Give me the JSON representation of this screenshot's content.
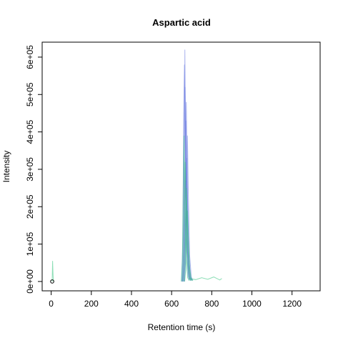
{
  "chart_data": {
    "type": "line",
    "title": "Aspartic acid",
    "xlabel": "Retention time (s)",
    "ylabel": "Intensity",
    "xlim": [
      -45,
      1340
    ],
    "ylim": [
      -25000,
      640000
    ],
    "x_ticks": [
      0,
      200,
      400,
      600,
      800,
      1000,
      1200
    ],
    "x_tick_labels": [
      "0",
      "200",
      "400",
      "600",
      "800",
      "1000",
      "1200"
    ],
    "y_ticks": [
      0,
      100000,
      200000,
      300000,
      400000,
      500000,
      600000
    ],
    "y_tick_labels": [
      "0e+00",
      "1e+05",
      "2e+05",
      "3e+05",
      "4e+05",
      "5e+05",
      "6e+05"
    ],
    "grid": false,
    "legend": "none",
    "colors": {
      "blue": "#6a7ae0",
      "green": "#2ec27a"
    },
    "point": {
      "x": 5,
      "y": 0
    },
    "series": [
      {
        "color": "blue",
        "x": [
          655,
          660,
          663,
          666,
          670,
          676,
          684,
          690
        ],
        "y": [
          0,
          100000,
          400000,
          620000,
          350000,
          120000,
          20000,
          5000
        ]
      },
      {
        "color": "blue",
        "x": [
          650,
          656,
          660,
          664,
          669,
          675,
          682,
          688
        ],
        "y": [
          0,
          120000,
          450000,
          580000,
          300000,
          90000,
          15000,
          3000
        ]
      },
      {
        "color": "blue",
        "x": [
          660,
          665,
          669,
          673,
          678,
          684,
          692,
          700
        ],
        "y": [
          0,
          80000,
          300000,
          480000,
          260000,
          80000,
          15000,
          4000
        ]
      },
      {
        "color": "blue",
        "x": [
          652,
          658,
          662,
          667,
          672,
          678,
          686,
          694
        ],
        "y": [
          0,
          90000,
          330000,
          520000,
          280000,
          85000,
          14000,
          3000
        ]
      },
      {
        "color": "blue",
        "x": [
          665,
          670,
          674,
          679,
          684,
          690,
          698,
          706
        ],
        "y": [
          0,
          60000,
          220000,
          390000,
          210000,
          70000,
          12000,
          3000
        ]
      },
      {
        "color": "blue",
        "x": [
          658,
          663,
          667,
          671,
          676,
          682,
          690,
          698
        ],
        "y": [
          0,
          70000,
          260000,
          430000,
          240000,
          75000,
          13000,
          4000
        ]
      },
      {
        "color": "blue",
        "x": [
          662,
          667,
          671,
          676,
          681,
          687,
          695,
          703
        ],
        "y": [
          0,
          50000,
          180000,
          330000,
          180000,
          60000,
          11000,
          3000
        ]
      },
      {
        "color": "blue",
        "x": [
          655,
          661,
          665,
          670,
          675,
          681,
          689,
          697
        ],
        "y": [
          0,
          40000,
          150000,
          270000,
          150000,
          50000,
          9000,
          2000
        ]
      },
      {
        "color": "green",
        "x": [
          648,
          654,
          658,
          662,
          666,
          672,
          680,
          688
        ],
        "y": [
          0,
          60000,
          250000,
          390000,
          200000,
          60000,
          10000,
          2000
        ]
      },
      {
        "color": "green",
        "x": [
          654,
          659,
          663,
          668,
          673,
          679,
          687,
          695
        ],
        "y": [
          0,
          50000,
          200000,
          320000,
          170000,
          50000,
          9000,
          2000
        ]
      },
      {
        "color": "green",
        "x": [
          660,
          665,
          669,
          674,
          679,
          685,
          693,
          701
        ],
        "y": [
          0,
          40000,
          150000,
          250000,
          140000,
          45000,
          8000,
          2000
        ]
      },
      {
        "color": "green",
        "x": [
          665,
          670,
          674,
          679,
          684,
          690,
          698,
          706
        ],
        "y": [
          0,
          30000,
          110000,
          190000,
          100000,
          35000,
          7000,
          2000
        ]
      },
      {
        "color": "green",
        "x": [
          690,
          720,
          750,
          780,
          810,
          840,
          850
        ],
        "y": [
          8000,
          5000,
          10000,
          6000,
          12000,
          4000,
          8000
        ]
      },
      {
        "color": "green",
        "x": [
          5,
          7,
          9,
          11
        ],
        "y": [
          0,
          55000,
          20000,
          0
        ]
      }
    ]
  }
}
